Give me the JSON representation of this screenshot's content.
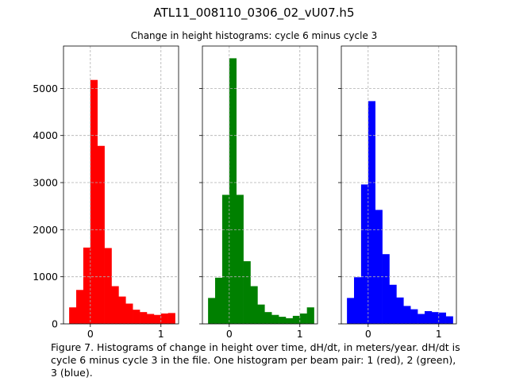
{
  "figure": {
    "suptitle": "ATL11_008110_0306_02_vU07.h5",
    "subtitle": "Change in height histograms: cycle 6 minus cycle 3",
    "caption": "Figure 7. Histograms of change in height over time, dH/dt, in meters/year. dH/dt is\ncycle 6 minus cycle 3 in the file. One histogram per beam pair: 1 (red), 2 (green),\n3 (blue)."
  },
  "chart_data": [
    {
      "type": "bar",
      "title": "",
      "xlabel": "",
      "ylabel": "",
      "color": "#ff0000",
      "bin_edges": [
        -0.3,
        -0.2,
        -0.1,
        0.0,
        0.1,
        0.2,
        0.3,
        0.4,
        0.5,
        0.6,
        0.7,
        0.8,
        0.9,
        1.0,
        1.1,
        1.2
      ],
      "values": [
        350,
        720,
        1620,
        5180,
        3780,
        1610,
        800,
        580,
        430,
        300,
        250,
        210,
        190,
        220,
        230
      ],
      "xlim": [
        -0.38,
        1.25
      ],
      "ylim": [
        0,
        5900
      ],
      "xticks": [
        0,
        1
      ],
      "yticks": [
        0,
        1000,
        2000,
        3000,
        4000,
        5000
      ],
      "grid": true
    },
    {
      "type": "bar",
      "title": "",
      "xlabel": "",
      "ylabel": "",
      "color": "#008000",
      "bin_edges": [
        -0.3,
        -0.2,
        -0.1,
        0.0,
        0.1,
        0.2,
        0.3,
        0.4,
        0.5,
        0.6,
        0.7,
        0.8,
        0.9,
        1.0,
        1.1,
        1.2
      ],
      "values": [
        550,
        980,
        2740,
        5640,
        2740,
        1330,
        800,
        410,
        250,
        190,
        150,
        120,
        170,
        220,
        350
      ],
      "xlim": [
        -0.38,
        1.25
      ],
      "ylim": [
        0,
        5900
      ],
      "xticks": [
        0,
        1
      ],
      "yticks": [
        0,
        1000,
        2000,
        3000,
        4000,
        5000
      ],
      "grid": true
    },
    {
      "type": "bar",
      "title": "",
      "xlabel": "",
      "ylabel": "",
      "color": "#0000ff",
      "bin_edges": [
        -0.3,
        -0.2,
        -0.1,
        0.0,
        0.1,
        0.2,
        0.3,
        0.4,
        0.5,
        0.6,
        0.7,
        0.8,
        0.9,
        1.0,
        1.1,
        1.2
      ],
      "values": [
        550,
        990,
        2960,
        4730,
        2420,
        1480,
        830,
        560,
        380,
        310,
        210,
        270,
        250,
        240,
        160
      ],
      "xlim": [
        -0.38,
        1.25
      ],
      "ylim": [
        0,
        5900
      ],
      "xticks": [
        0,
        1
      ],
      "yticks": [
        0,
        1000,
        2000,
        3000,
        4000,
        5000
      ],
      "grid": true
    }
  ]
}
